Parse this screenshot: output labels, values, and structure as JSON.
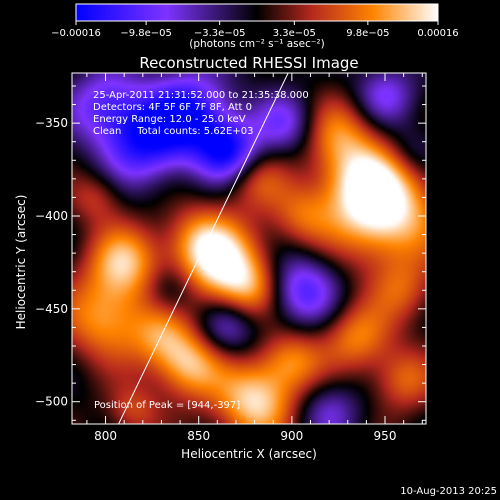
{
  "chart_data": {
    "type": "heatmap",
    "title": "Reconstructed RHESSI Image",
    "xlabel": "Heliocentric X (arcsec)",
    "ylabel": "Heliocentric Y (arcsec)",
    "xlim": [
      782,
      972
    ],
    "ylim": [
      -512,
      -323
    ],
    "xticks": [
      800,
      850,
      900,
      950
    ],
    "yticks": [
      -350,
      -400,
      -450,
      -500
    ],
    "colorbar": {
      "min": -0.00016,
      "max": 0.00016,
      "tick_values": [
        -0.00016,
        -9.8e-05,
        -3.3e-05,
        3.3e-05,
        9.8e-05,
        0.00016
      ],
      "tick_labels": [
        "−0.00016",
        "−9.8e−05",
        "−3.3e−05",
        "3.3e−05",
        "9.8e−05",
        "0.00016"
      ],
      "units_label": "(photons cm⁻² s⁻¹ asec⁻²)"
    },
    "annotations": [
      "25-Apr-2011 21:31:52.000 to 21:35:38.000",
      "Detectors: 4F 5F 6F 7F 8F, Att 0",
      "Energy Range: 12.0 - 25.0 keV",
      "Clean     Total counts: 5.62E+03"
    ],
    "peak_label": "Position of Peak = [944,-397]",
    "peak": [
      944,
      -397
    ],
    "limb_line": [
      [
        807,
        -512
      ],
      [
        898,
        -323
      ]
    ],
    "blobs": [
      {
        "x": 950,
        "y": -398,
        "a": 1.0,
        "s": 20
      },
      {
        "x": 937,
        "y": -380,
        "a": 0.6,
        "s": 16
      },
      {
        "x": 925,
        "y": -355,
        "a": 0.5,
        "s": 14
      },
      {
        "x": 863,
        "y": -427,
        "a": 0.9,
        "s": 16
      },
      {
        "x": 850,
        "y": -412,
        "a": 0.5,
        "s": 13
      },
      {
        "x": 878,
        "y": -440,
        "a": 0.5,
        "s": 12
      },
      {
        "x": 810,
        "y": -425,
        "a": 0.75,
        "s": 14
      },
      {
        "x": 800,
        "y": -455,
        "a": 0.7,
        "s": 16
      },
      {
        "x": 830,
        "y": -465,
        "a": 0.5,
        "s": 12
      },
      {
        "x": 845,
        "y": -480,
        "a": 0.8,
        "s": 13
      },
      {
        "x": 880,
        "y": -500,
        "a": 0.9,
        "s": 15
      },
      {
        "x": 900,
        "y": -478,
        "a": 0.6,
        "s": 12
      },
      {
        "x": 935,
        "y": -465,
        "a": 0.6,
        "s": 13
      },
      {
        "x": 960,
        "y": -488,
        "a": 0.5,
        "s": 12
      },
      {
        "x": 880,
        "y": -380,
        "a": 0.45,
        "s": 12
      },
      {
        "x": 905,
        "y": -400,
        "a": 0.45,
        "s": 12
      },
      {
        "x": 795,
        "y": -390,
        "a": 0.35,
        "s": 10
      },
      {
        "x": 960,
        "y": -440,
        "a": 0.4,
        "s": 12
      },
      {
        "x": 815,
        "y": -505,
        "a": 0.4,
        "s": 10
      },
      {
        "x": 845,
        "y": -345,
        "a": -0.9,
        "s": 16
      },
      {
        "x": 820,
        "y": -360,
        "a": -0.8,
        "s": 16
      },
      {
        "x": 866,
        "y": -365,
        "a": -0.9,
        "s": 12
      },
      {
        "x": 800,
        "y": -340,
        "a": -0.6,
        "s": 14
      },
      {
        "x": 897,
        "y": -350,
        "a": -0.5,
        "s": 12
      },
      {
        "x": 905,
        "y": -440,
        "a": -0.7,
        "s": 14
      },
      {
        "x": 950,
        "y": -335,
        "a": -0.5,
        "s": 12
      },
      {
        "x": 835,
        "y": -440,
        "a": -0.35,
        "s": 10
      },
      {
        "x": 865,
        "y": -460,
        "a": -0.5,
        "s": 12
      },
      {
        "x": 920,
        "y": -505,
        "a": -0.4,
        "s": 12
      },
      {
        "x": 965,
        "y": -365,
        "a": -0.3,
        "s": 10
      }
    ]
  },
  "footer": {
    "timestamp": "10-Aug-2013 20:25"
  }
}
